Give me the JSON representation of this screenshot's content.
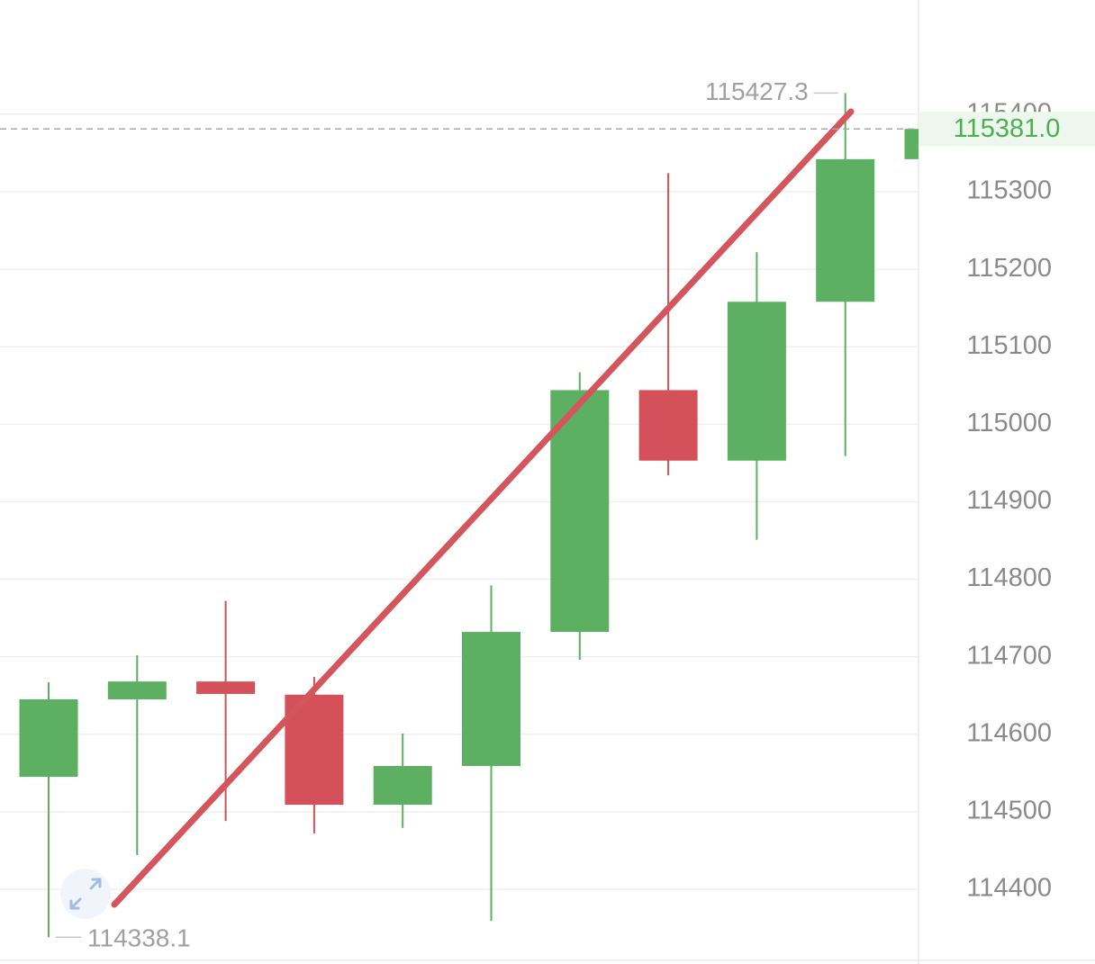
{
  "chart_data": {
    "type": "candlestick",
    "categories": [
      null,
      null,
      null,
      null,
      null,
      null,
      null,
      null,
      null,
      null,
      null
    ],
    "open": [
      114545,
      114645,
      114668,
      114651,
      114509,
      114559,
      114732,
      115044,
      114953,
      115158,
      115342
    ],
    "high": [
      114667,
      114702,
      114772,
      114674,
      114601,
      114792,
      115067,
      115324,
      115222,
      115427.3,
      115381
    ],
    "low": [
      114338.1,
      114444,
      114488,
      114472,
      114479,
      114359,
      114696,
      114934,
      114851,
      114959,
      115342
    ],
    "close": [
      114645,
      114668,
      114652,
      114509,
      114559,
      114732,
      115044,
      114953,
      115158,
      115342,
      115381
    ],
    "up_color": "#5db062",
    "down_color": "#d4515a",
    "ylim": [
      114303.5,
      115547.4
    ],
    "yticks": [
      114400,
      114500,
      114600,
      114700,
      114800,
      114900,
      115000,
      115100,
      115200,
      115300,
      115400
    ],
    "grid": true,
    "annotations": {
      "high": 115427.3,
      "low": 114338.1,
      "last_price": {
        "value": 115381,
        "label": "115381.0"
      }
    }
  }
}
